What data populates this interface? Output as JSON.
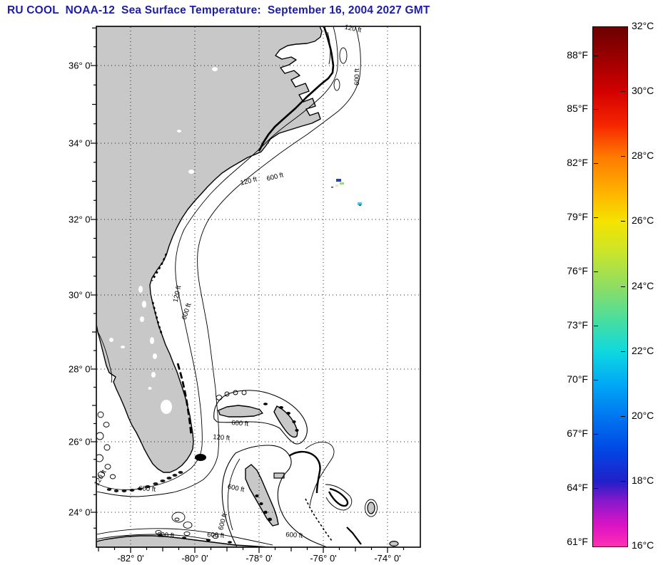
{
  "title": "RU COOL  NOAA-12  Sea Surface Temperature:  September 16, 2004 2027 GMT",
  "colors": {
    "title": "#1c1ca8",
    "land": "#c8c8c8",
    "ocean": "#ffffff",
    "frame": "#000000",
    "speck_dark_blue": "#2a3cc8",
    "speck_green": "#9fd67e",
    "speck_cyan": "#49c8d8"
  },
  "map": {
    "x_axis": {
      "labels": [
        "-82° 0'",
        "-80° 0'",
        "-78° 0'",
        "-76° 0'",
        "-74° 0'"
      ],
      "values": [
        -82,
        -80,
        -78,
        -76,
        -74
      ]
    },
    "y_axis": {
      "labels": [
        "36° 0'",
        "34° 0'",
        "32° 0'",
        "30° 0'",
        "28° 0'",
        "26° 0'",
        "24° 0'"
      ],
      "values": [
        36,
        34,
        32,
        30,
        28,
        26,
        24
      ]
    },
    "contour_labels": [
      {
        "text": "120 ft"
      },
      {
        "text": "600 ft"
      },
      {
        "text": "120 ft"
      },
      {
        "text": "600 ft"
      },
      {
        "text": "120 ft"
      },
      {
        "text": "600 ft"
      },
      {
        "text": "600 ft"
      },
      {
        "text": "120 ft"
      },
      {
        "text": "600 ft"
      },
      {
        "text": "600 ft"
      },
      {
        "text": "600 ft"
      },
      {
        "text": "600 ft"
      },
      {
        "text": "120 ft"
      },
      {
        "text": "600 ft"
      },
      {
        "text": "600 ft"
      }
    ]
  },
  "colorbar": {
    "min_c": 16,
    "max_c": 32,
    "celsius": [
      {
        "label": "32°C",
        "value": 32
      },
      {
        "label": "30°C",
        "value": 30
      },
      {
        "label": "28°C",
        "value": 28
      },
      {
        "label": "26°C",
        "value": 26
      },
      {
        "label": "24°C",
        "value": 24
      },
      {
        "label": "22°C",
        "value": 22
      },
      {
        "label": "20°C",
        "value": 20
      },
      {
        "label": "18°C",
        "value": 18
      },
      {
        "label": "16°C",
        "value": 16
      }
    ],
    "fahrenheit": [
      {
        "label": "88°F",
        "value": 88
      },
      {
        "label": "85°F",
        "value": 85
      },
      {
        "label": "82°F",
        "value": 82
      },
      {
        "label": "79°F",
        "value": 79
      },
      {
        "label": "76°F",
        "value": 76
      },
      {
        "label": "73°F",
        "value": 73
      },
      {
        "label": "70°F",
        "value": 70
      },
      {
        "label": "67°F",
        "value": 67
      },
      {
        "label": "64°F",
        "value": 64
      },
      {
        "label": "61°F",
        "value": 61
      }
    ],
    "gradient_stops": [
      {
        "c": 32,
        "color": "#6b0000"
      },
      {
        "c": 31,
        "color": "#9e0000"
      },
      {
        "c": 30,
        "color": "#d40000"
      },
      {
        "c": 29,
        "color": "#f52500"
      },
      {
        "c": 28,
        "color": "#ff7a00"
      },
      {
        "c": 27,
        "color": "#ffae00"
      },
      {
        "c": 26,
        "color": "#f5e400"
      },
      {
        "c": 25,
        "color": "#c6e52e"
      },
      {
        "c": 24,
        "color": "#8edd64"
      },
      {
        "c": 23,
        "color": "#4ade9e"
      },
      {
        "c": 22,
        "color": "#0fd8e0"
      },
      {
        "c": 21,
        "color": "#00a8f5"
      },
      {
        "c": 20,
        "color": "#0076f0"
      },
      {
        "c": 19,
        "color": "#0048e6"
      },
      {
        "c": 18,
        "color": "#2020c8"
      },
      {
        "c": 17.4,
        "color": "#8818cc"
      },
      {
        "c": 16.6,
        "color": "#e014c4"
      },
      {
        "c": 16,
        "color": "#ff30b4"
      }
    ]
  }
}
